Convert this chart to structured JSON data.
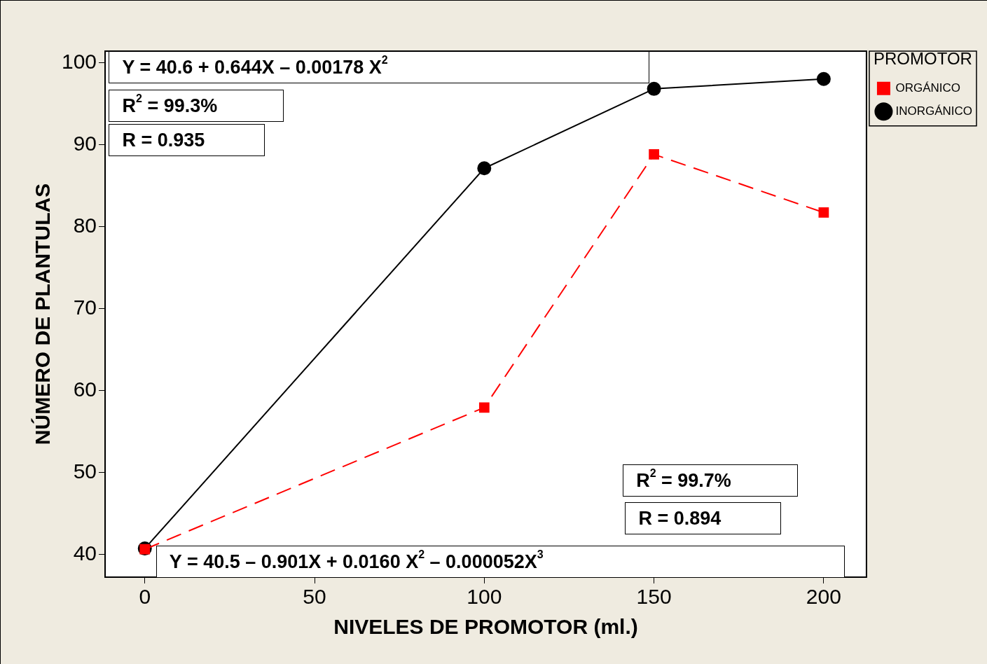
{
  "chart_data": {
    "type": "line",
    "xlabel": "NIVELES DE PROMOTOR (ml.)",
    "ylabel": "NÚMERO DE PLANTULAS",
    "legend_title": "PROMOTOR",
    "x": [
      0,
      100,
      150,
      200
    ],
    "series": [
      {
        "name": "INORGÁNICO",
        "color": "#000000",
        "values": [
          40.7,
          87.1,
          96.8,
          98.0
        ],
        "marker": "circle",
        "line_style": "solid"
      },
      {
        "name": "ORGÁNICO",
        "color": "#ff0000",
        "values": [
          40.6,
          57.9,
          88.8,
          81.7
        ],
        "marker": "square",
        "line_style": "dashed"
      }
    ],
    "xlim": [
      -11.7,
      212.6
    ],
    "xticks": [
      0,
      50,
      100,
      150,
      200
    ],
    "ylim": [
      37.2,
      101.4
    ],
    "yticks": [
      40,
      50,
      60,
      70,
      80,
      90,
      100
    ],
    "grid": false,
    "legend": "top right",
    "annotations": [
      "Y = 40.6 + 0.644X – 0.00178 X$^{2}$",
      "R$^{2}$ = 99.3%",
      "R = 0.935",
      "R$^{2}$ = 99.7%",
      "R = 0.894",
      "Y = 40.5 – 0.901X + 0.0160 X$^{2}$ – 0.000052X$^{3}$"
    ]
  }
}
